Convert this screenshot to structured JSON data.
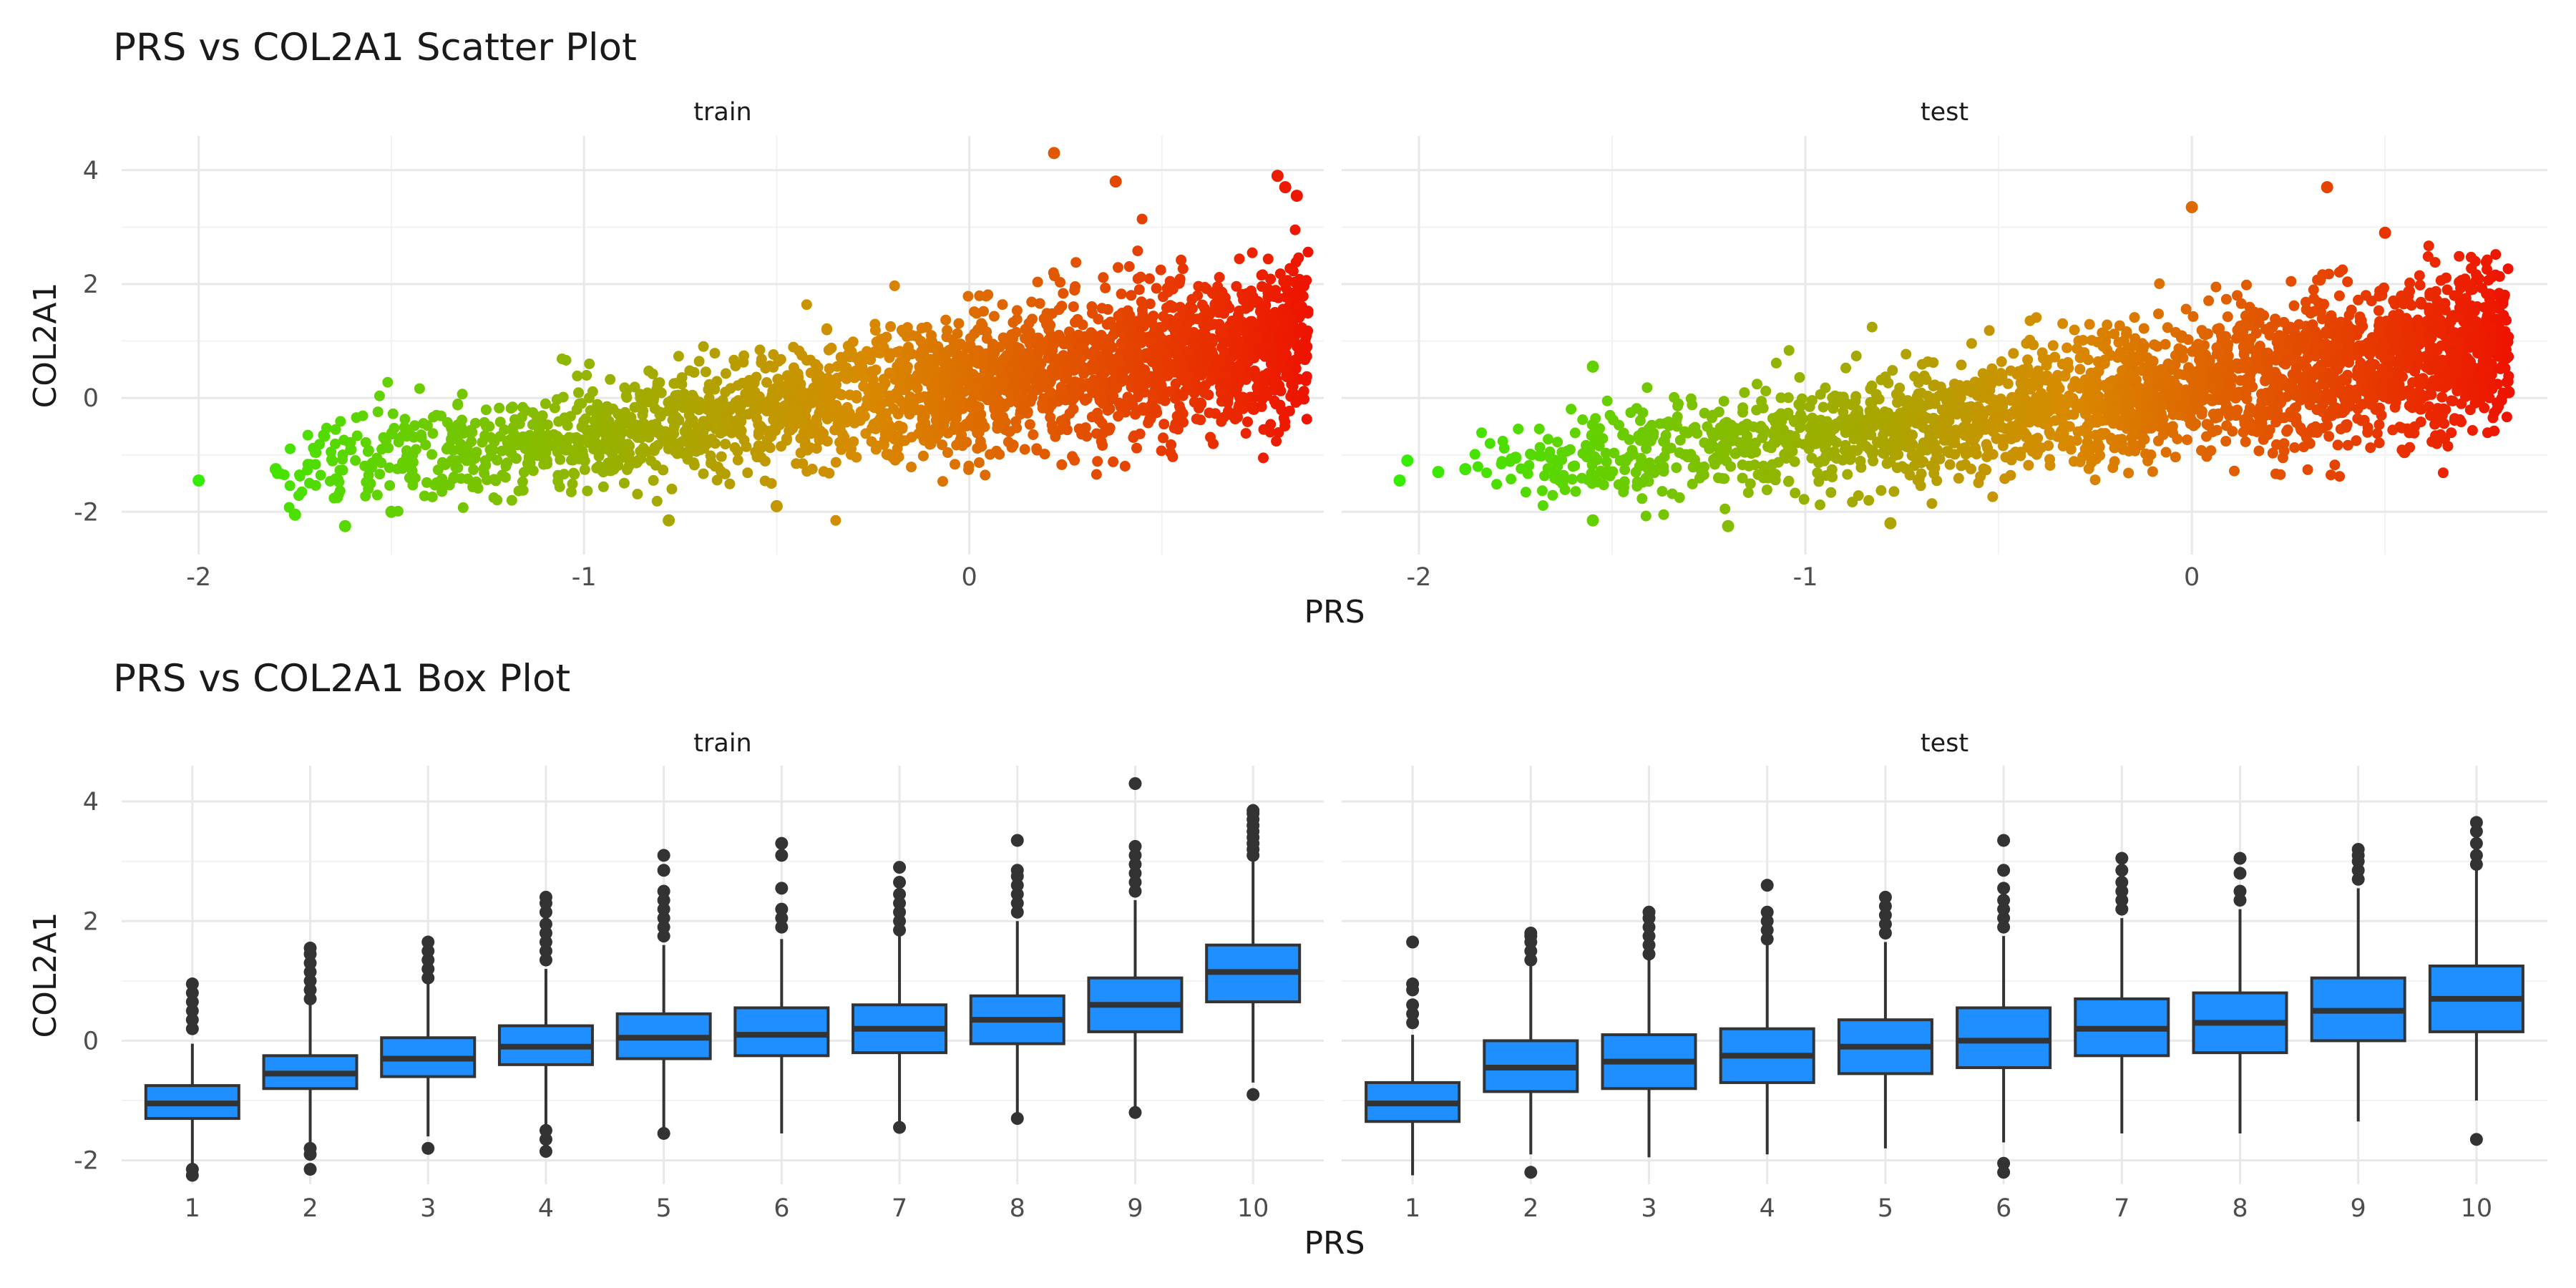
{
  "figure": {
    "scatter_title": "PRS vs COL2A1 Scatter Plot",
    "box_title": "PRS vs COL2A1 Box Plot"
  },
  "chart_data": [
    {
      "type": "scatter",
      "title": "PRS vs COL2A1 Scatter Plot",
      "xlabel": "PRS",
      "ylabel": "COL2A1",
      "facets": [
        "train",
        "test"
      ],
      "xlim": [
        -2.2,
        0.92
      ],
      "ylim": [
        -2.75,
        4.6
      ],
      "x_ticks": [
        -2,
        -1,
        0
      ],
      "y_ticks": [
        -2,
        0,
        2,
        4
      ],
      "grid": true,
      "color_gradient": {
        "low": "#33ee00",
        "mid": "#d88a00",
        "high": "#ee1400",
        "by": "PRS"
      },
      "trend": {
        "train": {
          "x_range": [
            -2.0,
            0.88
          ],
          "y_at_min": -1.45,
          "slope": 0.95,
          "mean_y_at_0": 0.25
        },
        "test": {
          "x_range": [
            -2.05,
            0.82
          ],
          "y_at_min": -1.45,
          "slope": 0.9,
          "mean_y_at_0": 0.2
        }
      },
      "series": [
        {
          "name": "train",
          "x": [
            -2.0,
            -1.8,
            -1.75,
            -1.62,
            -1.5,
            -0.78,
            -0.5,
            0.22,
            0.38,
            0.8,
            0.82,
            0.85,
            0.6
          ],
          "y": [
            -1.45,
            -1.25,
            -2.05,
            -2.25,
            -2.0,
            -2.15,
            -1.9,
            4.3,
            3.8,
            3.9,
            3.7,
            3.55,
            -0.1
          ]
        },
        {
          "name": "test",
          "x": [
            -2.05,
            -2.03,
            -1.95,
            -1.88,
            -1.75,
            -1.55,
            -1.55,
            -1.2,
            -0.78,
            0.0,
            0.35,
            0.5,
            0.82,
            0.72,
            0.55
          ],
          "y": [
            -1.45,
            -1.1,
            -1.3,
            -1.25,
            -1.05,
            0.55,
            -2.15,
            -2.25,
            -2.2,
            3.35,
            3.7,
            2.9,
            0.1,
            0.9,
            -0.95
          ]
        }
      ]
    },
    {
      "type": "box",
      "title": "PRS vs COL2A1 Box Plot",
      "xlabel": "PRS",
      "ylabel": "COL2A1",
      "facets": [
        "train",
        "test"
      ],
      "categories": [
        "1",
        "2",
        "3",
        "4",
        "5",
        "6",
        "7",
        "8",
        "9",
        "10"
      ],
      "ylim": [
        -2.4,
        4.6
      ],
      "y_ticks": [
        -2,
        0,
        2,
        4
      ],
      "fill": "#1f8fff",
      "grid": true,
      "series": [
        {
          "name": "train",
          "boxes": [
            {
              "q1": -1.3,
              "median": -1.05,
              "q3": -0.75,
              "whisker_low": -2.05,
              "whisker_high": -0.05,
              "outliers_low": [
                -2.15,
                -2.25
              ],
              "outliers_high": [
                0.2,
                0.35,
                0.5,
                0.65,
                0.8,
                0.95
              ]
            },
            {
              "q1": -0.8,
              "median": -0.55,
              "q3": -0.25,
              "whisker_low": -1.7,
              "whisker_high": 0.6,
              "outliers_low": [
                -1.8,
                -1.9,
                -2.15
              ],
              "outliers_high": [
                0.7,
                0.85,
                1.0,
                1.15,
                1.3,
                1.45,
                1.55
              ]
            },
            {
              "q1": -0.6,
              "median": -0.3,
              "q3": 0.05,
              "whisker_low": -1.6,
              "whisker_high": 0.95,
              "outliers_low": [
                -1.8
              ],
              "outliers_high": [
                1.05,
                1.2,
                1.35,
                1.5,
                1.65
              ]
            },
            {
              "q1": -0.4,
              "median": -0.1,
              "q3": 0.25,
              "whisker_low": -1.4,
              "whisker_high": 1.2,
              "outliers_low": [
                -1.5,
                -1.65,
                -1.85
              ],
              "outliers_high": [
                1.35,
                1.5,
                1.65,
                1.8,
                1.95,
                2.15,
                2.3,
                2.4
              ]
            },
            {
              "q1": -0.3,
              "median": 0.05,
              "q3": 0.45,
              "whisker_low": -1.5,
              "whisker_high": 1.6,
              "outliers_low": [
                -1.55
              ],
              "outliers_high": [
                1.75,
                1.9,
                2.05,
                2.2,
                2.35,
                2.5,
                2.85,
                3.1
              ]
            },
            {
              "q1": -0.25,
              "median": 0.1,
              "q3": 0.55,
              "whisker_low": -1.55,
              "whisker_high": 1.7,
              "outliers_low": [],
              "outliers_high": [
                1.9,
                2.05,
                2.2,
                2.55,
                3.1,
                3.3
              ]
            },
            {
              "q1": -0.2,
              "median": 0.2,
              "q3": 0.6,
              "whisker_low": -1.4,
              "whisker_high": 1.75,
              "outliers_low": [
                -1.45
              ],
              "outliers_high": [
                1.85,
                2.0,
                2.15,
                2.3,
                2.45,
                2.65,
                2.9
              ]
            },
            {
              "q1": -0.05,
              "median": 0.35,
              "q3": 0.75,
              "whisker_low": -1.25,
              "whisker_high": 2.0,
              "outliers_low": [
                -1.3
              ],
              "outliers_high": [
                2.15,
                2.3,
                2.45,
                2.6,
                2.75,
                2.85,
                3.35
              ]
            },
            {
              "q1": 0.15,
              "median": 0.6,
              "q3": 1.05,
              "whisker_low": -1.15,
              "whisker_high": 2.35,
              "outliers_low": [
                -1.2
              ],
              "outliers_high": [
                2.5,
                2.65,
                2.8,
                2.95,
                3.1,
                3.25,
                4.3
              ]
            },
            {
              "q1": 0.65,
              "median": 1.15,
              "q3": 1.6,
              "whisker_low": -0.7,
              "whisker_high": 3.0,
              "outliers_low": [
                -0.9
              ],
              "outliers_high": [
                3.1,
                3.2,
                3.3,
                3.4,
                3.5,
                3.6,
                3.7,
                3.8,
                3.85
              ]
            }
          ]
        },
        {
          "name": "test",
          "boxes": [
            {
              "q1": -1.35,
              "median": -1.05,
              "q3": -0.7,
              "whisker_low": -2.25,
              "whisker_high": 0.1,
              "outliers_low": [],
              "outliers_high": [
                0.3,
                0.45,
                0.6,
                0.85,
                0.95,
                1.65
              ]
            },
            {
              "q1": -0.85,
              "median": -0.45,
              "q3": 0.0,
              "whisker_low": -1.9,
              "whisker_high": 1.25,
              "outliers_low": [
                -2.2
              ],
              "outliers_high": [
                1.35,
                1.5,
                1.65,
                1.75,
                1.8
              ]
            },
            {
              "q1": -0.8,
              "median": -0.35,
              "q3": 0.1,
              "whisker_low": -1.95,
              "whisker_high": 1.35,
              "outliers_low": [],
              "outliers_high": [
                1.45,
                1.6,
                1.75,
                1.9,
                2.05,
                2.15
              ]
            },
            {
              "q1": -0.7,
              "median": -0.25,
              "q3": 0.2,
              "whisker_low": -1.9,
              "whisker_high": 1.6,
              "outliers_low": [],
              "outliers_high": [
                1.7,
                1.85,
                2.0,
                2.15,
                2.6
              ]
            },
            {
              "q1": -0.55,
              "median": -0.1,
              "q3": 0.35,
              "whisker_low": -1.8,
              "whisker_high": 1.65,
              "outliers_low": [],
              "outliers_high": [
                1.8,
                1.95,
                2.1,
                2.25,
                2.4
              ]
            },
            {
              "q1": -0.45,
              "median": 0.0,
              "q3": 0.55,
              "whisker_low": -1.7,
              "whisker_high": 1.75,
              "outliers_low": [
                -2.05,
                -2.2
              ],
              "outliers_high": [
                1.9,
                2.05,
                2.2,
                2.35,
                2.55,
                2.85,
                3.35
              ]
            },
            {
              "q1": -0.25,
              "median": 0.2,
              "q3": 0.7,
              "whisker_low": -1.55,
              "whisker_high": 2.05,
              "outliers_low": [],
              "outliers_high": [
                2.2,
                2.35,
                2.5,
                2.65,
                2.85,
                3.05
              ]
            },
            {
              "q1": -0.2,
              "median": 0.3,
              "q3": 0.8,
              "whisker_low": -1.55,
              "whisker_high": 2.2,
              "outliers_low": [],
              "outliers_high": [
                2.35,
                2.5,
                2.8,
                3.05
              ]
            },
            {
              "q1": 0.0,
              "median": 0.5,
              "q3": 1.05,
              "whisker_low": -1.35,
              "whisker_high": 2.55,
              "outliers_low": [],
              "outliers_high": [
                2.7,
                2.85,
                3.0,
                3.1,
                3.2
              ]
            },
            {
              "q1": 0.15,
              "median": 0.7,
              "q3": 1.25,
              "whisker_low": -1.0,
              "whisker_high": 2.85,
              "outliers_low": [
                -1.65
              ],
              "outliers_high": [
                2.95,
                3.1,
                3.3,
                3.5,
                3.65
              ]
            }
          ]
        }
      ]
    }
  ]
}
